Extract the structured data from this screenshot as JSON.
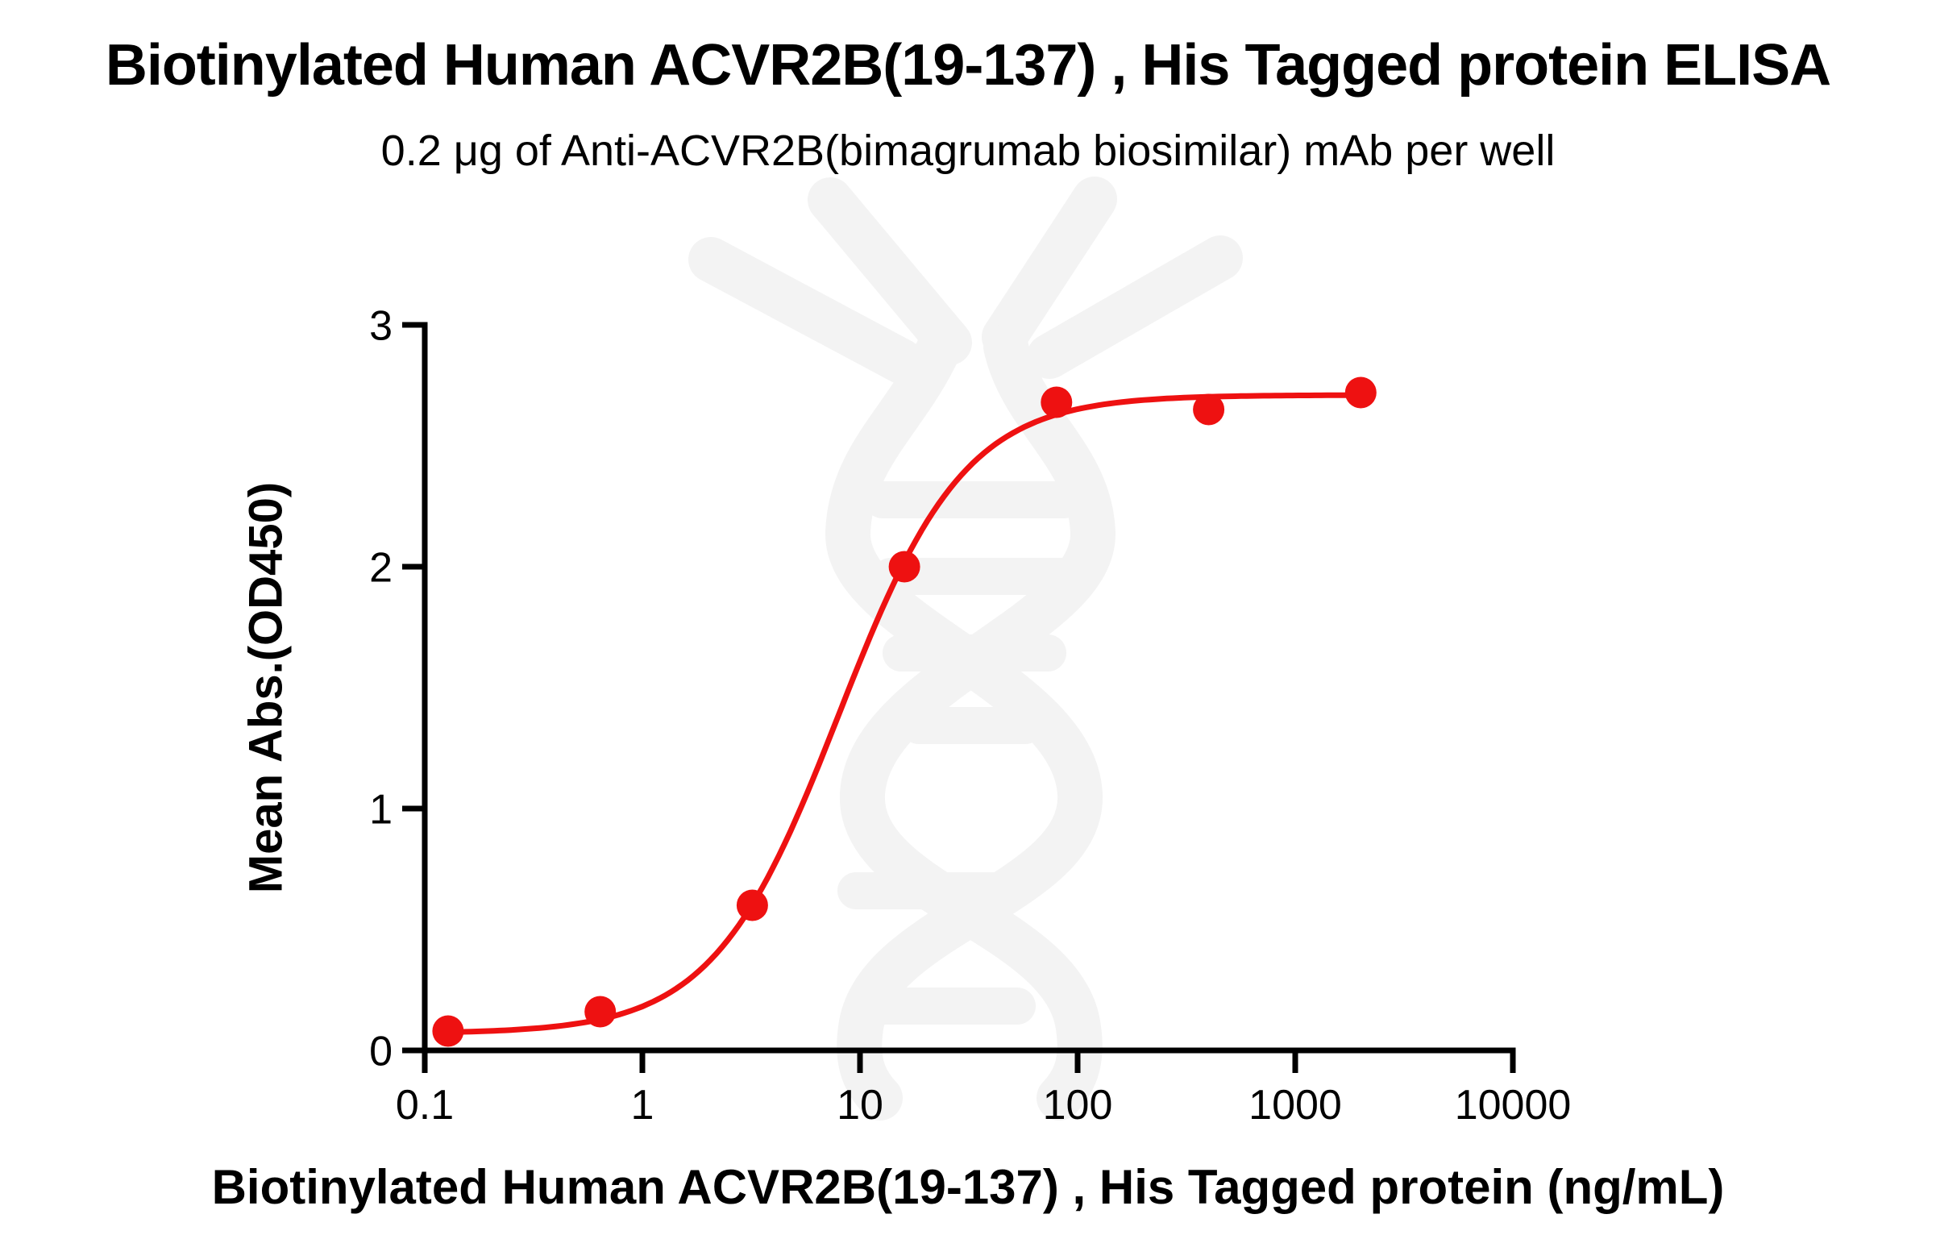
{
  "page": {
    "background": "#ffffff"
  },
  "chart_data": {
    "type": "scatter",
    "title": "Biotinylated Human ACVR2B(19-137) , His Tagged protein ELISA",
    "subtitle": "0.2 μg of Anti-ACVR2B(bimagrumab biosimilar) mAb per well",
    "xlabel": "Biotinylated Human ACVR2B(19-137) , His Tagged protein (ng/mL)",
    "ylabel": "Mean Abs.(OD450)",
    "x_scale": "log10",
    "xlim": [
      0.1,
      10000
    ],
    "ylim": [
      0,
      3
    ],
    "x_ticks": [
      0.1,
      1,
      10,
      100,
      1000,
      10000
    ],
    "x_tick_labels": [
      "0.1",
      "1",
      "10",
      "100",
      "1000",
      "10000"
    ],
    "y_ticks": [
      0,
      1,
      2,
      3
    ],
    "y_tick_labels": [
      "0",
      "1",
      "2",
      "3"
    ],
    "grid": false,
    "legend_position": "none",
    "series": [
      {
        "name": "Biotinylated Human ACVR2B(19-137), His Tagged protein",
        "x": [
          0.128,
          0.64,
          3.2,
          16,
          80,
          400,
          2000
        ],
        "y": [
          0.08,
          0.16,
          0.6,
          2.0,
          2.68,
          2.65,
          2.72
        ],
        "marker": "circle",
        "marker_color": "#ee1111",
        "line_color": "#ee1111"
      }
    ],
    "fit_curve": {
      "model": "4PL",
      "bottom": 0.07,
      "top": 2.71,
      "ec50": 8.0,
      "hill": 1.5,
      "x_start": 0.128,
      "x_end": 2000
    }
  },
  "watermark": {
    "name": "dna-helix",
    "color": "#f3f3f3"
  }
}
